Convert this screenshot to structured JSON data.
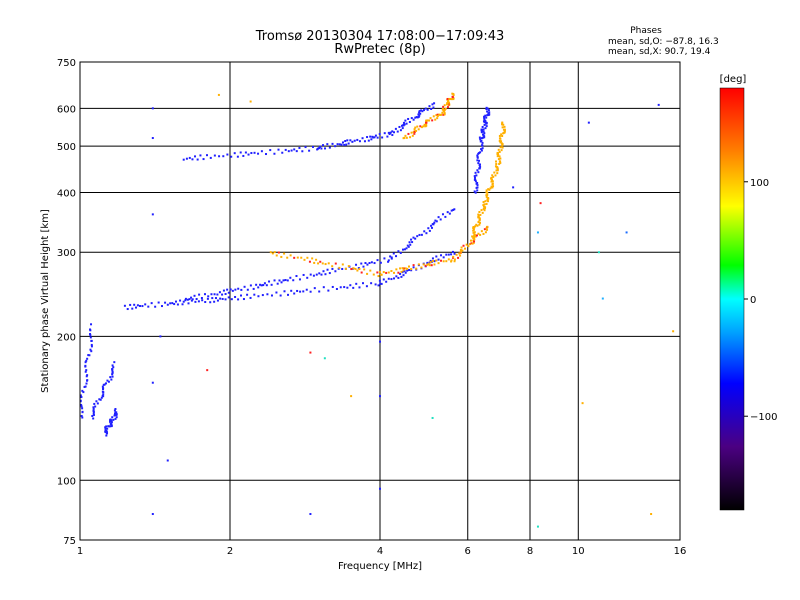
{
  "chart_data": {
    "type": "scatter",
    "title": "Tromsø 20130304 17:08:00−17:09:43",
    "subtitle": "RwPretec (8p)",
    "xlabel": "Frequency [MHz]",
    "ylabel": "Stationary phase Virtual Height [km]",
    "x_scale": "log",
    "y_scale": "log",
    "xlim": [
      1,
      16
    ],
    "ylim": [
      75,
      750
    ],
    "x_ticks": [
      1,
      2,
      4,
      6,
      8,
      10,
      16
    ],
    "x_tick_labels": [
      "1",
      "2",
      "4",
      "6",
      "8",
      "10",
      "16"
    ],
    "y_ticks": [
      75,
      100,
      200,
      300,
      400,
      500,
      600,
      750
    ],
    "y_tick_labels": [
      "75",
      "100",
      "200",
      "300",
      "400",
      "500",
      "600",
      "750"
    ],
    "grid": true,
    "phases_box": {
      "title": "Phases",
      "line_o": "mean, sd,O: −87.8, 16.3",
      "line_x": "mean, sd,X:  90.7, 19.4"
    },
    "colorbar": {
      "label": "[deg]",
      "range": [
        -180,
        180
      ],
      "ticks": [
        -100,
        0,
        100
      ],
      "tick_labels": [
        "−100",
        "0",
        "100"
      ]
    },
    "series": [
      {
        "segments": [
          [
            1.0,
            135,
            1.06,
            210
          ],
          [
            1.05,
            135,
            1.18,
            175
          ],
          [
            1.12,
            125,
            1.19,
            140
          ]
        ],
        "phase": -100
      },
      {
        "segments": [
          [
            1.22,
            230,
            2.0,
            240
          ],
          [
            2.0,
            240,
            4.0,
            258
          ],
          [
            4.0,
            258,
            5.6,
            300
          ]
        ],
        "phase": -110
      },
      {
        "segments": [
          [
            1.6,
            238,
            2.5,
            260
          ],
          [
            2.5,
            260,
            4.2,
            290
          ],
          [
            4.2,
            290,
            5.6,
            370
          ]
        ],
        "phase": -100
      },
      {
        "segments": [
          [
            1.6,
            470,
            3.0,
            495
          ],
          [
            3.0,
            495,
            4.2,
            530
          ],
          [
            4.2,
            530,
            5.1,
            610
          ]
        ],
        "phase": -110
      },
      {
        "segments": [
          [
            2.4,
            300,
            4.0,
            270
          ],
          [
            4.0,
            270,
            5.6,
            290
          ],
          [
            5.6,
            290,
            6.6,
            340
          ]
        ],
        "phase": 120
      },
      {
        "segments": [
          [
            6.1,
            320,
            6.5,
            380
          ],
          [
            6.5,
            380,
            6.9,
            460
          ],
          [
            6.9,
            460,
            7.1,
            560
          ]
        ],
        "phase": 110
      },
      {
        "segments": [
          [
            6.2,
            400,
            6.4,
            520
          ],
          [
            6.4,
            520,
            6.6,
            600
          ]
        ],
        "phase": -100
      },
      {
        "segments": [
          [
            4.5,
            520,
            5.2,
            580
          ],
          [
            5.3,
            580,
            5.6,
            640
          ]
        ],
        "phase": 120
      }
    ],
    "scatter_points": [
      [
        1.4,
        600,
        -100
      ],
      [
        1.4,
        520,
        -100
      ],
      [
        1.4,
        360,
        -110
      ],
      [
        1.45,
        200,
        -100
      ],
      [
        1.5,
        110,
        -110
      ],
      [
        1.4,
        85,
        -110
      ],
      [
        2.9,
        85,
        -110
      ],
      [
        4.0,
        96,
        -120
      ],
      [
        4.0,
        195,
        -100
      ],
      [
        4.0,
        150,
        -110
      ],
      [
        8.3,
        80,
        20
      ],
      [
        10.5,
        560,
        -100
      ],
      [
        14.5,
        610,
        -110
      ],
      [
        14.0,
        85,
        120
      ],
      [
        15.5,
        205,
        120
      ],
      [
        11.0,
        300,
        0
      ],
      [
        12.5,
        330,
        -60
      ],
      [
        11.2,
        240,
        -10
      ],
      [
        10.2,
        145,
        120
      ],
      [
        8.4,
        380,
        140
      ],
      [
        8.3,
        330,
        -10
      ],
      [
        7.4,
        410,
        -100
      ],
      [
        2.9,
        185,
        130
      ],
      [
        3.1,
        180,
        10
      ],
      [
        3.5,
        150,
        120
      ],
      [
        5.1,
        135,
        10
      ],
      [
        1.4,
        160,
        -90
      ],
      [
        1.8,
        170,
        140
      ],
      [
        2.2,
        620,
        120
      ],
      [
        1.9,
        640,
        120
      ]
    ]
  }
}
